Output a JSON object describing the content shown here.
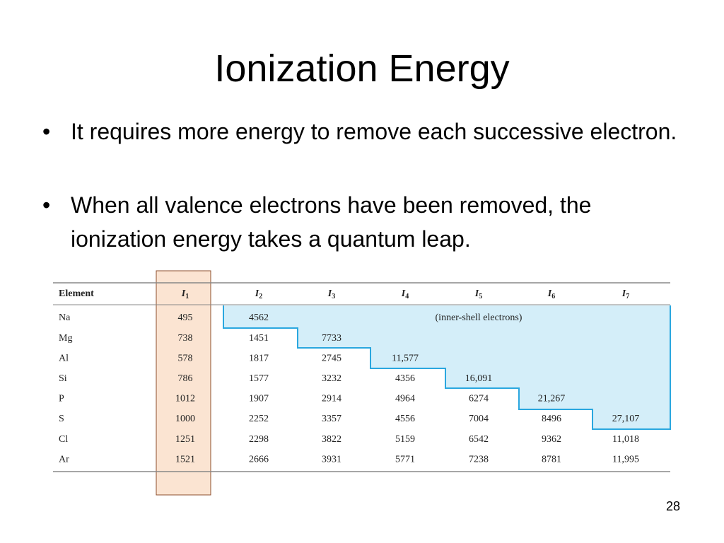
{
  "slide": {
    "title": "Ionization Energy",
    "bullets": [
      "It requires more energy to remove each successive electron.",
      "When all valence electrons have been removed, the ionization energy takes a quantum leap."
    ],
    "page_number": "28"
  },
  "table": {
    "header": [
      {
        "text": "Element"
      },
      {
        "base": "I",
        "sub": "1"
      },
      {
        "base": "I",
        "sub": "2"
      },
      {
        "base": "I",
        "sub": "3"
      },
      {
        "base": "I",
        "sub": "4"
      },
      {
        "base": "I",
        "sub": "5"
      },
      {
        "base": "I",
        "sub": "6"
      },
      {
        "base": "I",
        "sub": "7"
      }
    ],
    "rows": [
      [
        "Na",
        "495",
        "4562"
      ],
      [
        "Mg",
        "738",
        "1451",
        "7733"
      ],
      [
        "Al",
        "578",
        "1817",
        "2745",
        "11,577"
      ],
      [
        "Si",
        "786",
        "1577",
        "3232",
        "4356",
        "16,091"
      ],
      [
        "P",
        "1012",
        "1907",
        "2914",
        "4964",
        "6274",
        "21,267"
      ],
      [
        "S",
        "1000",
        "2252",
        "3357",
        "4556",
        "7004",
        "8496",
        "27,107"
      ],
      [
        "Cl",
        "1251",
        "2298",
        "3822",
        "5159",
        "6542",
        "9362",
        "11,018"
      ],
      [
        "Ar",
        "1521",
        "2666",
        "3931",
        "5771",
        "7238",
        "8781",
        "11,995"
      ]
    ],
    "annotation": "(inner-shell electrons)"
  }
}
